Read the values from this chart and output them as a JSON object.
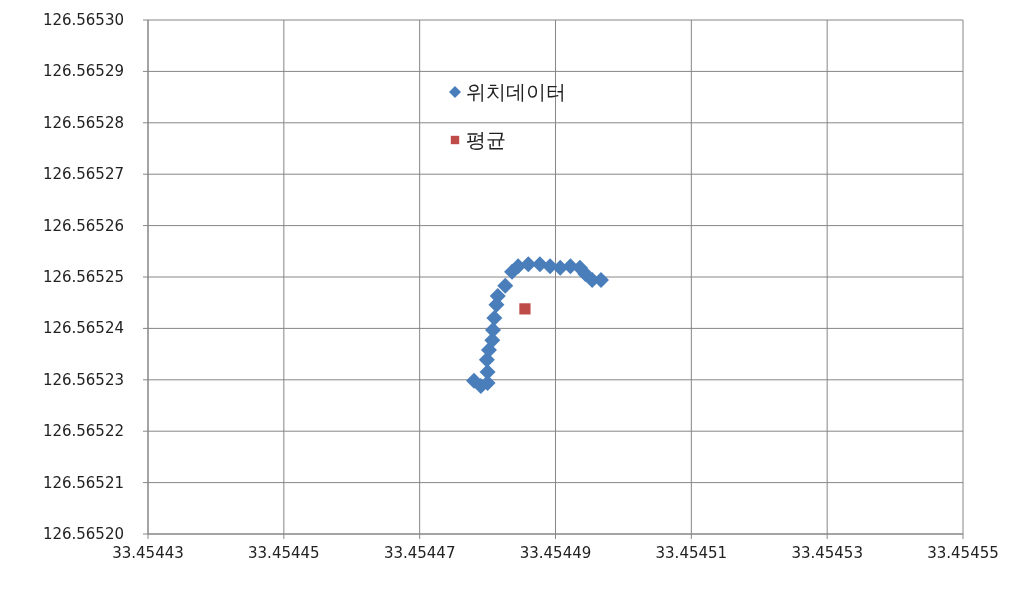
{
  "chart_data": {
    "type": "scatter",
    "series": [
      {
        "name": "위치데이터",
        "color": "#4a7ebb",
        "marker": "diamond",
        "x": [
          33.454478,
          33.454479,
          33.45448,
          33.45448,
          33.4544799,
          33.4544802,
          33.4544807,
          33.4544808,
          33.454481,
          33.4544813,
          33.4544815,
          33.4544826,
          33.4544836,
          33.4544845,
          33.454486,
          33.4544877,
          33.4544892,
          33.4544907,
          33.4544922,
          33.4544936,
          33.4544944,
          33.4544954,
          33.4544967
        ],
        "values": [
          126.5652298,
          126.5652288,
          126.5652294,
          126.5652315,
          126.5652339,
          126.5652358,
          126.5652377,
          126.5652397,
          126.565242,
          126.5652446,
          126.5652463,
          126.5652483,
          126.565251,
          126.5652521,
          126.5652525,
          126.5652525,
          126.5652521,
          126.5652518,
          126.5652521,
          126.5652518,
          126.5652506,
          126.5652494,
          126.5652494
        ]
      },
      {
        "name": "평균",
        "color": "#be4b48",
        "marker": "square",
        "x": [
          33.4544855
        ],
        "values": [
          126.5652438
        ]
      }
    ],
    "xlim": [
      33.45443,
      33.45455
    ],
    "xticks": [
      33.45443,
      33.45445,
      33.45447,
      33.45449,
      33.45451,
      33.45453,
      33.45455
    ],
    "ylim": [
      126.5652,
      126.5653
    ],
    "yticks": [
      {
        "value": 126.5652,
        "label": "126.56520"
      },
      {
        "value": 126.56521,
        "label": "126.56521"
      },
      {
        "value": 126.56522,
        "label": "126.56522"
      },
      {
        "value": 126.56523,
        "label": "126.56523"
      },
      {
        "value": 126.56524,
        "label": "126.56524"
      },
      {
        "value": 126.56525,
        "label": "126.56525"
      },
      {
        "value": 126.56526,
        "label": "126.56526"
      },
      {
        "value": 126.56527,
        "label": "126.56527"
      },
      {
        "value": 126.56528,
        "label": "126.56528"
      },
      {
        "value": 126.56529,
        "label": "126.56529"
      },
      {
        "value": 126.5653,
        "label": "126.56530"
      }
    ],
    "grid": true,
    "legend": "top"
  }
}
